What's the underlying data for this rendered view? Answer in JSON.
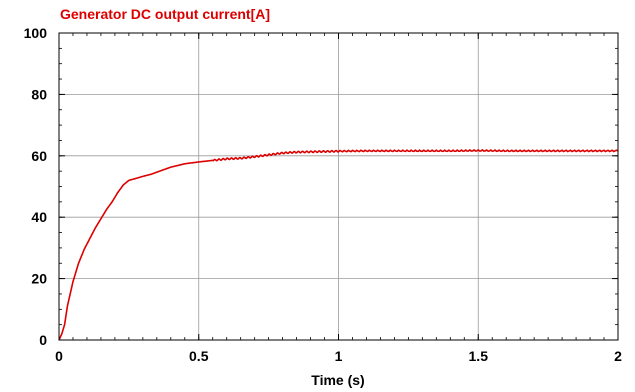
{
  "chart_data": {
    "type": "line",
    "title": "Generator DC output current[A]",
    "xlabel": "Time (s)",
    "ylabel": "",
    "xlim": [
      0,
      2
    ],
    "ylim": [
      0,
      100
    ],
    "xticks": [
      0,
      0.5,
      1,
      1.5,
      2
    ],
    "xtick_labels": [
      "0",
      "0.5",
      "1",
      "1.5",
      "2"
    ],
    "yticks": [
      0,
      20,
      40,
      60,
      80,
      100
    ],
    "ytick_labels": [
      "0",
      "20",
      "40",
      "60",
      "80",
      "100"
    ],
    "grid": true,
    "colors": {
      "series": "#dd0000",
      "title": "#dd0000",
      "grid": "#9a9a9a",
      "axis": "#000000"
    },
    "series": [
      {
        "x": [
          0,
          0.01,
          0.02,
          0.03,
          0.05,
          0.07,
          0.09,
          0.11,
          0.13,
          0.15,
          0.17,
          0.19,
          0.21,
          0.23,
          0.25,
          0.27,
          0.3,
          0.33,
          0.36,
          0.4,
          0.45,
          0.5,
          0.55,
          0.6,
          0.65,
          0.7,
          0.75,
          0.8,
          0.85,
          0.9,
          0.95,
          1.0,
          1.1,
          1.2,
          1.3,
          1.4,
          1.5,
          1.6,
          1.7,
          1.8,
          1.9,
          2.0
        ],
        "y": [
          0,
          2,
          5,
          11,
          19,
          25,
          29.5,
          33,
          36.5,
          39.5,
          42.5,
          45,
          48,
          50.5,
          52,
          52.5,
          53.3,
          54,
          55,
          56.3,
          57.4,
          58,
          58.5,
          59,
          59.2,
          59.7,
          60.3,
          60.9,
          61.2,
          61.3,
          61.4,
          61.5,
          61.6,
          61.6,
          61.6,
          61.6,
          61.7,
          61.6,
          61.6,
          61.6,
          61.6,
          61.6
        ]
      }
    ]
  }
}
